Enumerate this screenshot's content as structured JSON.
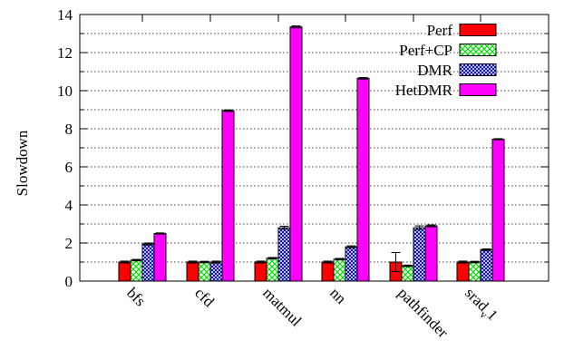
{
  "chart_data": {
    "type": "bar",
    "ylabel": "Slowdown",
    "ylim": [
      0,
      14
    ],
    "yticks": [
      0,
      2,
      4,
      6,
      8,
      10,
      12,
      14
    ],
    "categories": [
      "bfs",
      "cfd",
      "matmul",
      "nn",
      "pathfinder",
      "srad_v1"
    ],
    "category_labels": [
      {
        "main": "bfs",
        "sub": ""
      },
      {
        "main": "cfd",
        "sub": ""
      },
      {
        "main": "matmul",
        "sub": ""
      },
      {
        "main": "nn",
        "sub": ""
      },
      {
        "main": "pathfinder",
        "sub": ""
      },
      {
        "main": "srad",
        "sub": "v",
        "tail": "1"
      }
    ],
    "series": [
      {
        "name": "Perf",
        "values": [
          1.0,
          1.0,
          1.0,
          1.0,
          1.0,
          1.0
        ],
        "errors": [
          0.05,
          0.05,
          0.05,
          0.05,
          0.5,
          0.05
        ],
        "color": "#ff0000",
        "pattern": "solid"
      },
      {
        "name": "Perf+CP",
        "values": [
          1.1,
          1.0,
          1.2,
          1.15,
          0.8,
          1.0
        ],
        "errors": [
          0.04,
          0.04,
          0.04,
          0.04,
          0.04,
          0.04
        ],
        "color": "#00dd00",
        "pattern": "cross"
      },
      {
        "name": "DMR",
        "values": [
          1.95,
          1.0,
          2.8,
          1.8,
          2.8,
          1.65
        ],
        "errors": [
          0.05,
          0.05,
          0.08,
          0.05,
          0.1,
          0.04
        ],
        "color": "#0000cc",
        "pattern": "grid"
      },
      {
        "name": "HetDMR",
        "values": [
          2.5,
          8.95,
          13.35,
          10.65,
          2.9,
          7.45
        ],
        "errors": [
          0.03,
          0.04,
          0.05,
          0.04,
          0.05,
          0.03
        ],
        "color": "#ff00ff",
        "pattern": "solid"
      }
    ],
    "grid": true,
    "grid_style": "dotted-horizontal",
    "legend_position": "top-right"
  }
}
